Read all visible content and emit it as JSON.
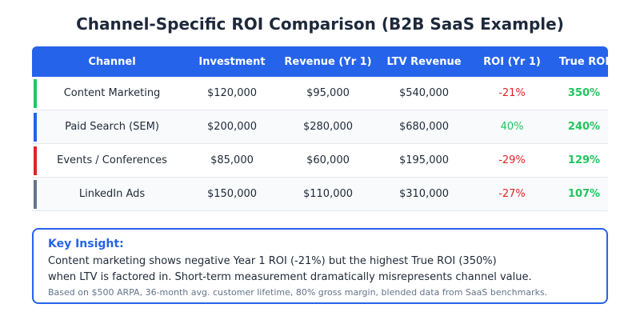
{
  "title": "Channel-Specific ROI Comparison (B2B SaaS Example)",
  "table": {
    "headers": [
      "Channel",
      "Investment",
      "Revenue (Yr 1)",
      "LTV Revenue",
      "ROI (Yr 1)",
      "True ROI"
    ],
    "rows": [
      {
        "accent": "#22c55e",
        "cells": [
          "Content Marketing",
          "$120,000",
          "$95,000",
          "$540,000",
          "-21%",
          "350%"
        ]
      },
      {
        "accent": "#2563eb",
        "cells": [
          "Paid Search (SEM)",
          "$200,000",
          "$280,000",
          "$680,000",
          "40%",
          "240%"
        ]
      },
      {
        "accent": "#dc2626",
        "cells": [
          "Events / Conferences",
          "$85,000",
          "$60,000",
          "$195,000",
          "-29%",
          "129%"
        ]
      },
      {
        "accent": "#64748b",
        "cells": [
          "LinkedIn Ads",
          "$150,000",
          "$110,000",
          "$310,000",
          "-27%",
          "107%"
        ]
      }
    ]
  },
  "insight": {
    "label": "Key Insight:",
    "lines": [
      "Content marketing shows negative Year 1 ROI (-21%) but the highest True ROI (350%)",
      "when LTV is factored in. Short-term measurement dramatically misrepresents channel value."
    ],
    "note": "Based on $500 ARPA, 36-month avg. customer lifetime, 80% gross margin, blended data from SaaS benchmarks."
  }
}
